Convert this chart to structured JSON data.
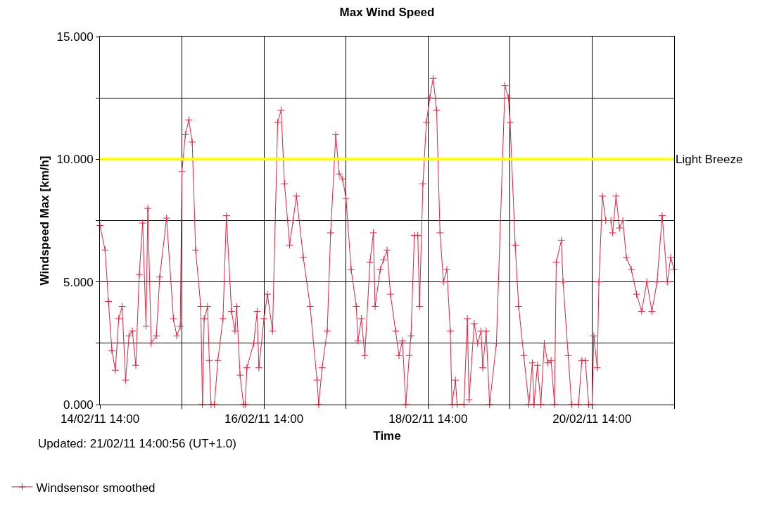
{
  "chart_data": {
    "type": "line",
    "title": "Max Wind Speed",
    "xlabel": "Time",
    "ylabel": "Windspeed Max [km/h]",
    "annotations": [
      "Updated: 21/02/11 14:00:56 (UT+1.0)"
    ],
    "xlim": [
      "--02-14T14:00",
      "--02-21T14:00"
    ],
    "xticks": [
      {
        "value": "--02-14T14:00",
        "label": "14/02/11 14:00"
      },
      {
        "value": "--02-15T14:00",
        "label": null
      },
      {
        "value": "--02-16T14:00",
        "label": "16/02/11 14:00"
      },
      {
        "value": "--02-17T14:00",
        "label": null
      },
      {
        "value": "--02-18T14:00",
        "label": "18/02/11 14:00"
      },
      {
        "value": "--02-19T14:00",
        "label": null
      },
      {
        "value": "--02-20T14:00",
        "label": "20/02/11 14:00"
      },
      {
        "value": "--02-21T14:00",
        "label": null
      }
    ],
    "ylim": [
      0,
      15
    ],
    "yticks": [
      {
        "value": 0,
        "label": "0.000"
      },
      {
        "value": 2.5,
        "label": null
      },
      {
        "value": 5,
        "label": "5.000"
      },
      {
        "value": 7.5,
        "label": null
      },
      {
        "value": 10,
        "label": "10.000"
      },
      {
        "value": 12.5,
        "label": null
      },
      {
        "value": 15,
        "label": "15.000"
      }
    ],
    "grid": true,
    "legend": "bottom left",
    "marker": "cross",
    "line_style": "solid",
    "ref_lines": [
      {
        "axis": "y",
        "value": 10,
        "label": "Light Breeze",
        "color": "#ffff00"
      }
    ],
    "series": [
      {
        "name": "Windsensor smoothed",
        "color": "#e8203c",
        "x": [
          "--02-14T14:00",
          "--02-14T15:30",
          "--02-14T16:30",
          "--02-14T17:30",
          "--02-14T18:30",
          "--02-14T19:30",
          "--02-14T20:30",
          "--02-14T21:30",
          "--02-14T22:30",
          "--02-14T23:30",
          "--02-15T00:30",
          "--02-15T01:30",
          "--02-15T02:30",
          "--02-15T03:30",
          "--02-15T04:00",
          "--02-15T05:00",
          "--02-15T06:30",
          "--02-15T07:30",
          "--02-15T09:30",
          "--02-15T11:30",
          "--02-15T12:30",
          "--02-15T13:30",
          "--02-15T14:00",
          "--02-15T15:00",
          "--02-15T16:00",
          "--02-15T17:00",
          "--02-15T18:00",
          "--02-15T19:30",
          "--02-15T20:00",
          "--02-15T20:30",
          "--02-15T21:30",
          "--02-15T22:00",
          "--02-15T22:30",
          "--02-15T23:30",
          "--02-16T00:30",
          "--02-16T02:00",
          "--02-16T03:00",
          "--02-16T04:30",
          "--02-16T05:30",
          "--02-16T06:00",
          "--02-16T07:00",
          "--02-16T08:00",
          "--02-16T08:30",
          "--02-16T09:00",
          "--02-16T11:00",
          "--02-16T12:00",
          "--02-16T12:30",
          "--02-16T14:00",
          "--02-16T15:00",
          "--02-16T16:30",
          "--02-16T18:00",
          "--02-16T19:00",
          "--02-16T20:00",
          "--02-16T21:30",
          "--02-16T22:30",
          "--02-16T23:30",
          "--02-17T01:30",
          "--02-17T03:30",
          "--02-17T05:30",
          "--02-17T06:00",
          "--02-17T07:00",
          "--02-17T08:30",
          "--02-17T09:30",
          "--02-17T11:00",
          "--02-17T12:00",
          "--02-17T13:00",
          "--02-17T14:00",
          "--02-17T15:30",
          "--02-17T17:00",
          "--02-17T17:30",
          "--02-17T18:30",
          "--02-17T19:30",
          "--02-17T21:00",
          "--02-17T22:00",
          "--02-17T22:30",
          "--02-18T00:00",
          "--02-18T01:00",
          "--02-18T02:00",
          "--02-18T03:00",
          "--02-18T04:30",
          "--02-18T05:30",
          "--02-18T06:30",
          "--02-18T07:30",
          "--02-18T08:30",
          "--02-18T09:00",
          "--02-18T10:00",
          "--02-18T11:00",
          "--02-18T11:30",
          "--02-18T12:30",
          "--02-18T13:30",
          "--02-18T14:30",
          "--02-18T15:30",
          "--02-18T16:30",
          "--02-18T17:30",
          "--02-18T18:30",
          "--02-18T19:30",
          "--02-18T20:30",
          "--02-18T21:00",
          "--02-18T22:00",
          "--02-18T22:30",
          "--02-19T00:30",
          "--02-19T01:30",
          "--02-19T02:00",
          "--02-19T03:30",
          "--02-19T04:30",
          "--02-19T05:30",
          "--02-19T06:00",
          "--02-19T07:00",
          "--02-19T08:00",
          "--02-19T10:00",
          "--02-19T12:30",
          "--02-19T13:30",
          "--02-19T14:00",
          "--02-19T15:30",
          "--02-19T16:30",
          "--02-19T18:00",
          "--02-19T19:30",
          "--02-19T20:30",
          "--02-19T21:00",
          "--02-19T22:00",
          "--02-19T23:00",
          "--02-20T00:00",
          "--02-20T01:00",
          "--02-20T02:00",
          "--02-20T03:00",
          "--02-20T03:30",
          "--02-20T05:00",
          "--02-20T05:30",
          "--02-20T07:00",
          "--02-20T08:00",
          "--02-20T10:00",
          "--02-20T11:00",
          "--02-20T12:00",
          "--02-20T13:00",
          "--02-20T14:00",
          "--02-20T14:30",
          "--02-20T15:30",
          "--02-20T16:00",
          "--02-20T17:00",
          "--02-20T18:00",
          "--02-20T19:30",
          "--02-20T20:00",
          "--02-20T21:00",
          "--02-20T22:00",
          "--02-20T23:00",
          "--02-21T00:00",
          "--02-21T01:30",
          "--02-21T03:00",
          "--02-21T04:30",
          "--02-21T06:00",
          "--02-21T07:30",
          "--02-21T09:00",
          "--02-21T10:30",
          "--02-21T12:00",
          "--02-21T13:00",
          "--02-21T14:00"
        ],
        "values": [
          7.3,
          6.3,
          4.2,
          2.2,
          1.4,
          3.5,
          4.0,
          1.0,
          2.8,
          3.0,
          1.6,
          5.3,
          7.4,
          3.2,
          8.0,
          2.5,
          2.8,
          5.2,
          7.6,
          3.5,
          2.8,
          3.2,
          9.5,
          11.0,
          11.6,
          10.7,
          6.3,
          4.0,
          0,
          3.5,
          4.0,
          1.8,
          0,
          0,
          1.8,
          3.5,
          7.7,
          3.8,
          3.0,
          4.0,
          1.2,
          0,
          0,
          1.5,
          2.5,
          3.8,
          1.5,
          3.5,
          4.5,
          3.0,
          11.5,
          12.0,
          9.0,
          6.5,
          7.5,
          8.5,
          6.0,
          4.0,
          1.0,
          0,
          1.5,
          3.0,
          7.0,
          11.0,
          9.4,
          9.2,
          8.4,
          5.5,
          4.0,
          2.6,
          3.5,
          2.0,
          5.8,
          7.0,
          4.0,
          5.5,
          5.9,
          6.3,
          4.5,
          3.0,
          2.0,
          2.6,
          0,
          2.0,
          2.8,
          6.9,
          6.9,
          4.0,
          9.0,
          11.5,
          12.5,
          13.3,
          12.0,
          7.0,
          5.0,
          5.5,
          3.0,
          0,
          1.0,
          0,
          0,
          3.5,
          0.2,
          3.3,
          2.5,
          3.0,
          1.5,
          3.0,
          0,
          2.5,
          13.0,
          12.5,
          11.5,
          6.5,
          4.0,
          2.0,
          0,
          1.7,
          0,
          1.6,
          0,
          2.5,
          1.7,
          1.8,
          0,
          5.8,
          6.7,
          5.0,
          2.0,
          0,
          0,
          1.8,
          1.8,
          0,
          0,
          2.8,
          1.5,
          5.0,
          8.5,
          7.5,
          7.5,
          7.0,
          8.5,
          7.2,
          7.5,
          6.0,
          5.5,
          4.5,
          3.8,
          5.0,
          3.8,
          5.0,
          7.7,
          5.0,
          6.0,
          5.5
        ]
      }
    ]
  }
}
